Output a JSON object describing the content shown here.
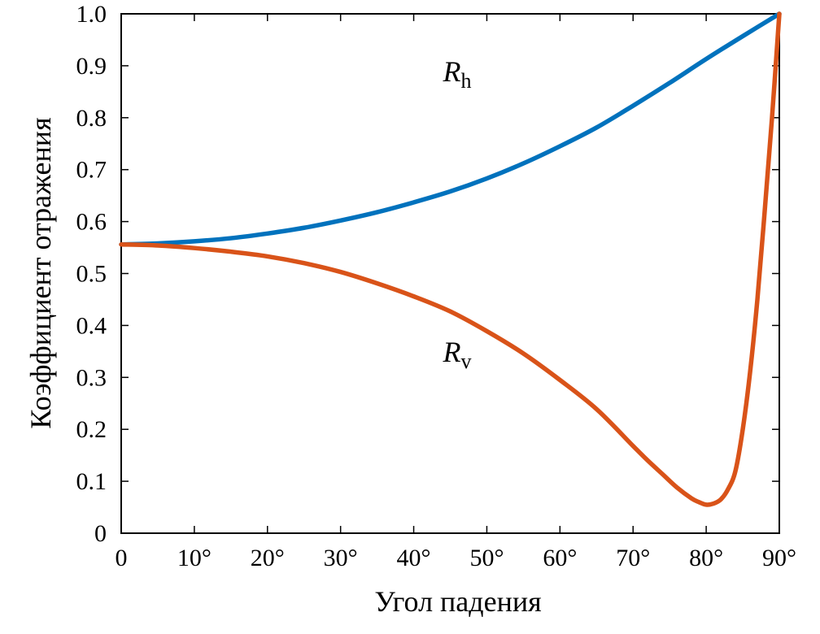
{
  "chart_data": {
    "type": "line",
    "title": "",
    "xlabel": "Угол падения",
    "ylabel": "Коэффициент отражения",
    "xlim": [
      0,
      90
    ],
    "ylim": [
      0,
      1.0
    ],
    "grid": false,
    "x_ticks": [
      {
        "value": 0,
        "label": "0"
      },
      {
        "value": 10,
        "label": "10°"
      },
      {
        "value": 20,
        "label": "20°"
      },
      {
        "value": 30,
        "label": "30°"
      },
      {
        "value": 40,
        "label": "40°"
      },
      {
        "value": 50,
        "label": "50°"
      },
      {
        "value": 60,
        "label": "60°"
      },
      {
        "value": 70,
        "label": "70°"
      },
      {
        "value": 80,
        "label": "80°"
      },
      {
        "value": 90,
        "label": "90°"
      }
    ],
    "y_ticks": [
      {
        "value": 0,
        "label": "0"
      },
      {
        "value": 0.1,
        "label": "0.1"
      },
      {
        "value": 0.2,
        "label": "0.2"
      },
      {
        "value": 0.3,
        "label": "0.3"
      },
      {
        "value": 0.4,
        "label": "0.4"
      },
      {
        "value": 0.5,
        "label": "0.5"
      },
      {
        "value": 0.6,
        "label": "0.6"
      },
      {
        "value": 0.7,
        "label": "0.7"
      },
      {
        "value": 0.8,
        "label": "0.8"
      },
      {
        "value": 0.9,
        "label": "0.9"
      },
      {
        "value": 1.0,
        "label": "1.0"
      }
    ],
    "series": [
      {
        "name": "Rh",
        "label_main": "R",
        "label_sub": "h",
        "label_anchor": {
          "x": 44,
          "y": 0.87
        },
        "color": "#0072bd",
        "x": [
          0,
          5,
          10,
          15,
          20,
          25,
          30,
          35,
          40,
          45,
          50,
          55,
          60,
          65,
          70,
          75,
          80,
          85,
          90
        ],
        "y": [
          0.556,
          0.558,
          0.562,
          0.568,
          0.577,
          0.588,
          0.602,
          0.618,
          0.637,
          0.658,
          0.683,
          0.712,
          0.745,
          0.781,
          0.823,
          0.867,
          0.913,
          0.957,
          1.0
        ]
      },
      {
        "name": "Rv",
        "label_main": "R",
        "label_sub": "v",
        "label_anchor": {
          "x": 44,
          "y": 0.33
        },
        "color": "#d95319",
        "x": [
          0,
          5,
          10,
          15,
          20,
          25,
          30,
          35,
          40,
          45,
          50,
          55,
          60,
          65,
          70,
          72,
          74,
          76,
          78,
          79,
          80,
          81,
          82,
          83,
          84,
          85,
          86,
          87,
          88,
          89,
          90
        ],
        "y": [
          0.556,
          0.554,
          0.549,
          0.542,
          0.533,
          0.52,
          0.503,
          0.481,
          0.456,
          0.427,
          0.389,
          0.346,
          0.295,
          0.239,
          0.168,
          0.14,
          0.114,
          0.088,
          0.067,
          0.06,
          0.055,
          0.057,
          0.065,
          0.085,
          0.12,
          0.2,
          0.31,
          0.45,
          0.62,
          0.8,
          1.0
        ]
      }
    ]
  }
}
